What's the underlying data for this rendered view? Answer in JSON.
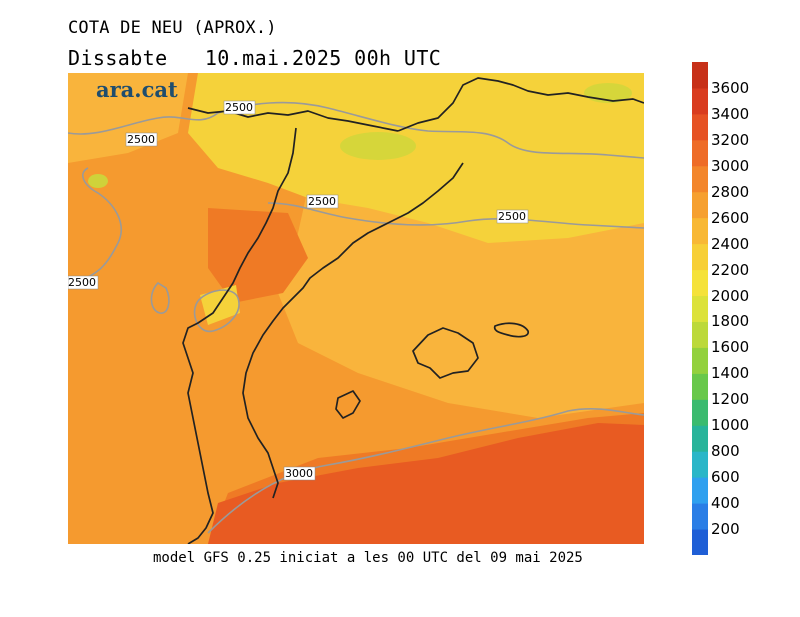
{
  "header": {
    "title": "COTA DE NEU (APROX.)",
    "subtitle": "Dissabte   10.mai.2025 00h UTC"
  },
  "logo": {
    "text": "ara.cat",
    "color": "#1f4d6e"
  },
  "footer": {
    "text": "model GFS 0.25 iniciat a les 00 UTC del 09 mai 2025"
  },
  "map": {
    "contour_labels": [
      "2500",
      "2500",
      "2500",
      "2500",
      "2500",
      "3000"
    ],
    "colors": {
      "yellow": "#f5d23a",
      "light_orange": "#f9b43c",
      "orange": "#f59a2f",
      "dark_orange": "#ef7a25",
      "red_orange": "#e85b22",
      "green_patch": "#d6d63a",
      "coast": "#222222",
      "contour": "#9a9a9a"
    }
  },
  "colorbar": {
    "ticks": [
      "3600",
      "3400",
      "3200",
      "3000",
      "2800",
      "2600",
      "2400",
      "2200",
      "2000",
      "1800",
      "1600",
      "1400",
      "1200",
      "1000",
      "800",
      "600",
      "400",
      "200"
    ],
    "colors": [
      "#1f5fd6",
      "#2a7ee6",
      "#2fa0ef",
      "#2ab6c8",
      "#28b49a",
      "#3bbb6f",
      "#68c84a",
      "#93d13d",
      "#bcd93a",
      "#dce23a",
      "#f5e23a",
      "#f7cf36",
      "#f8b834",
      "#f6a030",
      "#f3862b",
      "#ee6c27",
      "#e65224",
      "#d93c1f",
      "#c73018"
    ]
  }
}
